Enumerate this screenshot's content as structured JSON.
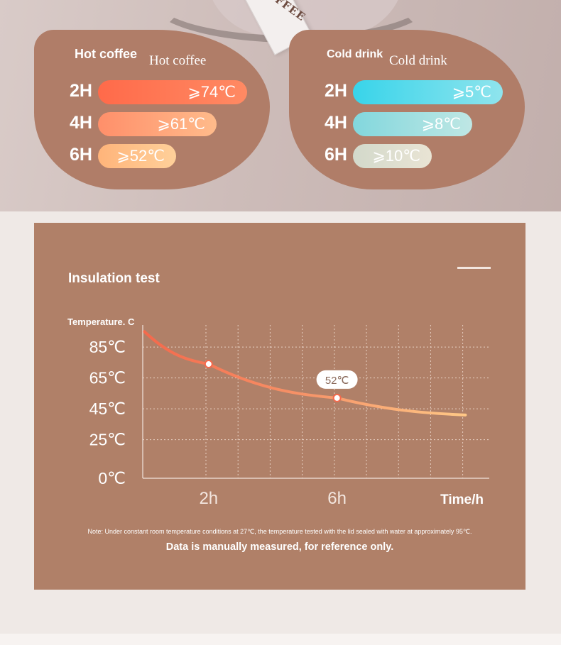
{
  "hot": {
    "label_en": "Hot coffee",
    "label_serif": "Hot coffee",
    "rows": [
      {
        "hour": "2H",
        "value": "⩾74℃"
      },
      {
        "hour": "4H",
        "value": "⩾61℃"
      },
      {
        "hour": "6H",
        "value": "⩾52℃"
      }
    ]
  },
  "cold": {
    "label_en": "Cold drink",
    "label_serif": "Cold drink",
    "rows": [
      {
        "hour": "2H",
        "value": "⩾5℃"
      },
      {
        "hour": "4H",
        "value": "⩾8℃"
      },
      {
        "hour": "6H",
        "value": "⩾10℃"
      }
    ]
  },
  "ribbon_text": "COFFEE",
  "panel": {
    "title": "Insulation test",
    "note": "Note: Under constant room temperature conditions at 27℃, the temperature tested with the lid sealed with water at approximately 95℃.",
    "reference": "Data is manually measured, for reference only."
  },
  "chart_data": {
    "type": "line",
    "ylabel": "Temperature. C",
    "xlabel": "Time/h",
    "y_ticks": [
      "0℃",
      "25℃",
      "45℃",
      "65℃",
      "85℃"
    ],
    "x_ticks": [
      "2h",
      "6h"
    ],
    "curve_color": "#f47a55",
    "series": [
      {
        "x": [
          0,
          2,
          6,
          10
        ],
        "y": [
          95,
          74,
          52,
          41
        ]
      }
    ],
    "markers": [
      {
        "x": 2,
        "y": 74,
        "label": ""
      },
      {
        "x": 6,
        "y": 52,
        "label": "52℃"
      }
    ]
  }
}
